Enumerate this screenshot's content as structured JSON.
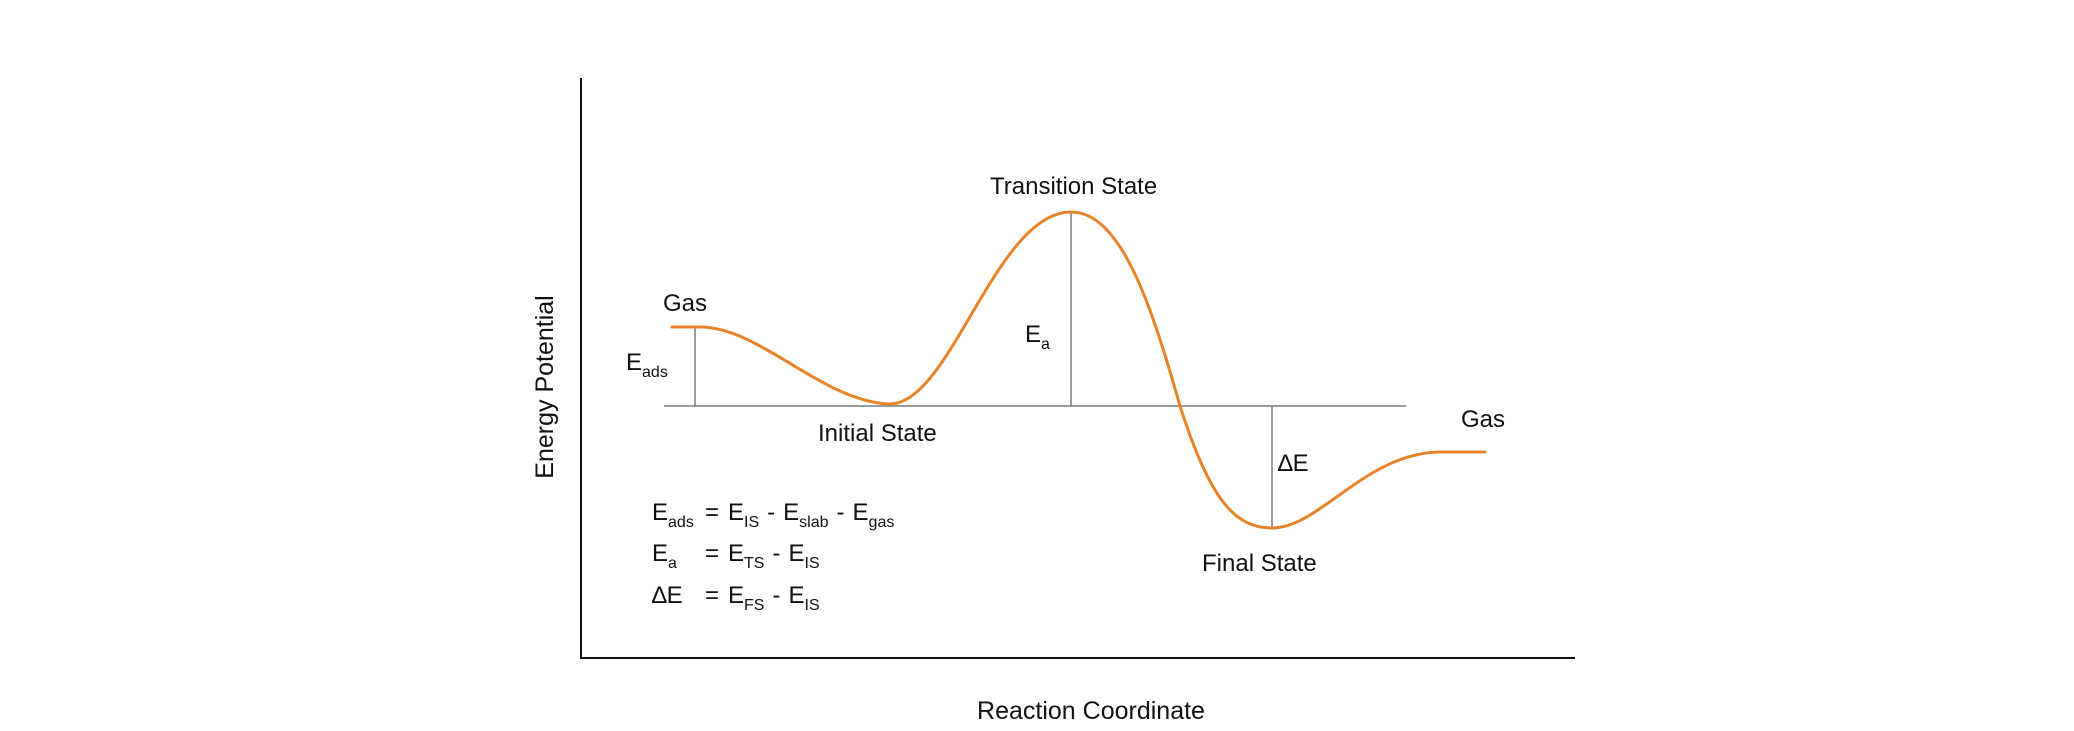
{
  "axes": {
    "y_label": "Energy Potential",
    "x_label": "Reaction Coordinate"
  },
  "states": {
    "gas_left": "Gas",
    "initial": "Initial State",
    "transition": "Transition State",
    "final": "Final State",
    "gas_right": "Gas"
  },
  "markers": {
    "e_ads": {
      "base": "E",
      "sub": "ads"
    },
    "e_a": {
      "base": "E",
      "sub": "a"
    },
    "delta_e": "∆E"
  },
  "equations": [
    {
      "lhs": {
        "base": "E",
        "sub": "ads"
      },
      "rhs": [
        {
          "base": "E",
          "sub": "IS"
        },
        {
          "base": "E",
          "sub": "slab"
        },
        {
          "base": "E",
          "sub": "gas"
        }
      ]
    },
    {
      "lhs": {
        "base": "E",
        "sub": "a"
      },
      "rhs": [
        {
          "base": "E",
          "sub": "TS"
        },
        {
          "base": "E",
          "sub": "IS"
        }
      ]
    },
    {
      "lhs": {
        "base": "∆E",
        "sub": ""
      },
      "rhs": [
        {
          "base": "E",
          "sub": "FS"
        },
        {
          "base": "E",
          "sub": "IS"
        }
      ]
    }
  ],
  "colors": {
    "curve": "#e8832a",
    "axis": "#111111",
    "reference": "#7a7a7a"
  }
}
